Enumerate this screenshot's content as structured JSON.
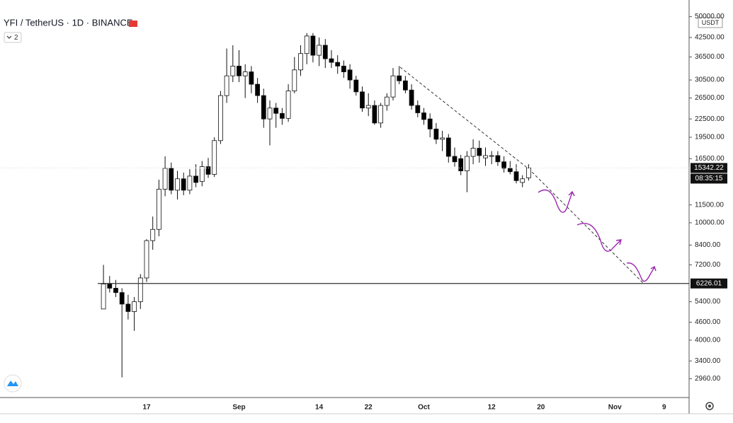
{
  "chart_data": {
    "type": "candlestick",
    "title": "YFI / TetherUS · 1D · BINANCE",
    "indicator_count": "2",
    "currency": "USDT",
    "log_scale": true,
    "grid": false,
    "up_color": "#ffffff",
    "down_color": "#000000",
    "categories": [
      null,
      null,
      null,
      null,
      null,
      null,
      null,
      "17",
      null,
      null,
      null,
      null,
      null,
      null,
      null,
      null,
      null,
      null,
      null,
      null,
      null,
      null,
      "Sep",
      null,
      null,
      null,
      null,
      null,
      null,
      null,
      null,
      null,
      null,
      null,
      null,
      "14",
      null,
      null,
      null,
      null,
      null,
      null,
      null,
      "22",
      null,
      null,
      null,
      null,
      null,
      null,
      null,
      null,
      "Oct",
      null,
      null,
      null,
      null,
      null,
      null,
      null,
      null,
      null,
      null,
      "12",
      null,
      null,
      null,
      null,
      null,
      null,
      null,
      "20",
      null,
      null,
      null,
      null,
      null,
      null,
      null,
      null,
      null,
      null,
      null,
      "Nov",
      null,
      null,
      null,
      null,
      null,
      null,
      null,
      "9",
      null,
      null,
      null
    ],
    "open": [
      5100,
      6200,
      6000,
      5800,
      5300,
      5000,
      5400,
      6500,
      8700,
      9500,
      13000,
      15300,
      12900,
      14100,
      12900,
      14400,
      13800,
      15500,
      14600,
      19000,
      27000,
      31500,
      34000,
      31500,
      32500,
      29500,
      27000,
      22500,
      24500,
      23500,
      22600,
      28000,
      33000,
      37500,
      43000,
      37000,
      40000,
      36000,
      35000,
      34000,
      33000,
      30500,
      27800,
      24500,
      25000,
      21800,
      25000,
      26700,
      31500,
      30300,
      28200,
      25000,
      23600,
      22500,
      20800,
      19200,
      19400,
      16800,
      16500,
      15000,
      16800,
      17900,
      16600,
      16800,
      16900,
      16100,
      15300,
      14900,
      13700,
      14200,
      null,
      null,
      null,
      null,
      null,
      null,
      null,
      null,
      null,
      null,
      null,
      null,
      null,
      null,
      null,
      null,
      null,
      null,
      null,
      null,
      null,
      null,
      null,
      null,
      null
    ],
    "high": [
      7200,
      6600,
      6400,
      6000,
      5700,
      5600,
      6700,
      8800,
      10500,
      14000,
      16800,
      16000,
      15000,
      14800,
      15200,
      15800,
      16200,
      16600,
      19500,
      28000,
      39000,
      40000,
      38500,
      34500,
      34000,
      31000,
      28500,
      26000,
      25500,
      24500,
      29500,
      36500,
      40000,
      44000,
      44000,
      42500,
      42000,
      38500,
      37000,
      35500,
      34500,
      31500,
      29000,
      27500,
      26000,
      25500,
      27500,
      33500,
      34000,
      31500,
      29500,
      26000,
      24500,
      23500,
      21800,
      20500,
      20000,
      18000,
      17000,
      17500,
      19200,
      19000,
      18000,
      17500,
      17500,
      16800,
      16200,
      15800,
      14500,
      15800,
      null,
      null,
      null,
      null,
      null,
      null,
      null,
      null,
      null,
      null,
      null,
      null,
      null,
      null,
      null,
      null,
      null,
      null,
      null,
      null,
      null,
      null,
      null,
      null,
      null
    ],
    "low": [
      5100,
      5800,
      5600,
      2990,
      4700,
      4300,
      5100,
      6300,
      8100,
      9000,
      12300,
      12500,
      12000,
      12400,
      12500,
      13200,
      13300,
      14200,
      14300,
      18500,
      25500,
      30000,
      30000,
      26500,
      27500,
      25500,
      21000,
      18300,
      21000,
      21500,
      22000,
      27500,
      31500,
      34500,
      35000,
      34000,
      33500,
      33500,
      32000,
      31000,
      28500,
      27000,
      23800,
      23000,
      21500,
      21000,
      24000,
      26000,
      29500,
      27500,
      24200,
      22800,
      21500,
      19500,
      18500,
      17500,
      16000,
      15500,
      14500,
      12700,
      15800,
      16000,
      15600,
      15800,
      15600,
      14800,
      14600,
      13600,
      13200,
      13900,
      null,
      null,
      null,
      null,
      null,
      null,
      null,
      null,
      null,
      null,
      null,
      null,
      null,
      null,
      null,
      null,
      null,
      null,
      null,
      null,
      null,
      null,
      null,
      null,
      null
    ],
    "close": [
      6200,
      6000,
      5800,
      5300,
      5000,
      5400,
      6500,
      8700,
      9500,
      13000,
      15300,
      12900,
      14100,
      12900,
      14400,
      13700,
      15500,
      14600,
      19000,
      27000,
      31500,
      34000,
      31500,
      32500,
      29500,
      27000,
      22500,
      24500,
      23500,
      22600,
      28000,
      33000,
      37500,
      43000,
      37000,
      40000,
      36000,
      35000,
      34000,
      32500,
      30500,
      27800,
      24500,
      25000,
      21800,
      25000,
      26700,
      31500,
      30300,
      28200,
      25000,
      23600,
      22400,
      20800,
      19200,
      19400,
      16800,
      16100,
      15000,
      16800,
      17900,
      16900,
      16900,
      16900,
      16100,
      15300,
      14900,
      13900,
      14100,
      15342.22,
      null,
      null,
      null,
      null,
      null,
      null,
      null,
      null,
      null,
      null,
      null,
      null,
      null,
      null,
      null,
      null,
      null,
      null,
      null,
      null,
      null,
      null,
      null,
      null,
      null
    ],
    "ylim": [
      2555,
      50440
    ],
    "yticks": [
      {
        "value": 50000,
        "label": "50000.00"
      },
      {
        "value": 42500,
        "label": "42500.00"
      },
      {
        "value": 36500,
        "label": "36500.00"
      },
      {
        "value": 30500,
        "label": "30500.00"
      },
      {
        "value": 26500,
        "label": "26500.00"
      },
      {
        "value": 22500,
        "label": "22500.00"
      },
      {
        "value": 19500,
        "label": "19500.00"
      },
      {
        "value": 16500,
        "label": "16500.00"
      },
      {
        "value": 11500,
        "label": "11500.00"
      },
      {
        "value": 10000,
        "label": "10000.00"
      },
      {
        "value": 8400,
        "label": "8400.00"
      },
      {
        "value": 7200,
        "label": "7200.00"
      },
      {
        "value": 5400,
        "label": "5400.00"
      },
      {
        "value": 4600,
        "label": "4600.00"
      },
      {
        "value": 4000,
        "label": "4000.00"
      },
      {
        "value": 3400,
        "label": "3400.00"
      },
      {
        "value": 2960,
        "label": "2960.00"
      }
    ],
    "horizontal_line": {
      "value": 6226.01,
      "label": "6226.01"
    },
    "last_price": {
      "value": 15342.22,
      "label": "15342.22",
      "countdown": "08:35:15"
    }
  }
}
